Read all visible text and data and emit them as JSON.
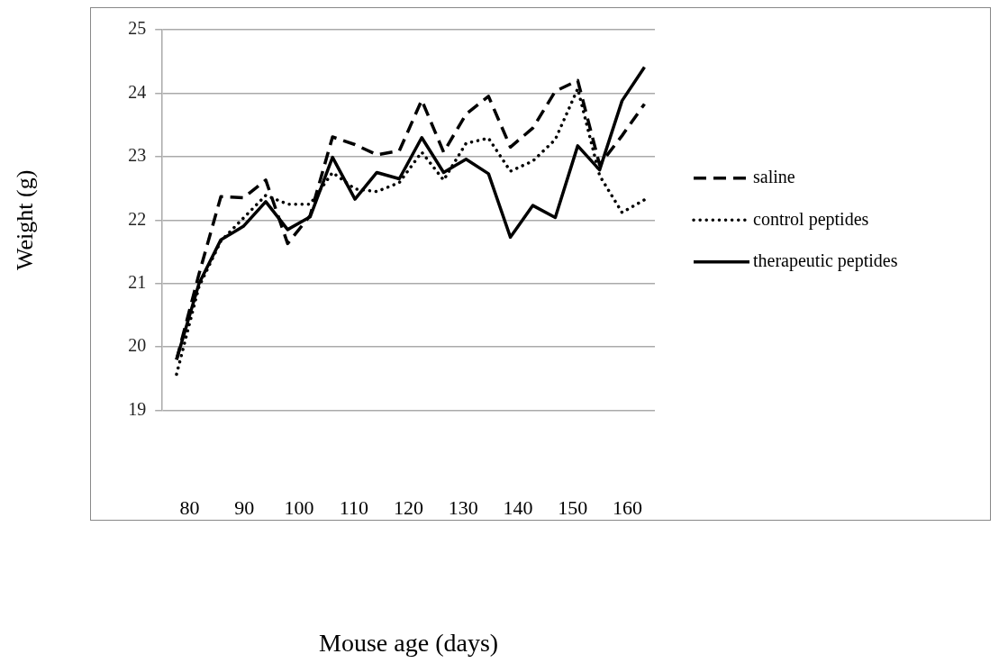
{
  "chart_data": {
    "type": "line",
    "xlabel": "Mouse age (days)",
    "ylabel": "Weight (g)",
    "x": [
      77.6,
      81.7,
      85.7,
      89.8,
      93.9,
      97.9,
      102.0,
      106.1,
      110.2,
      114.2,
      118.3,
      122.4,
      126.4,
      130.5,
      134.6,
      138.6,
      142.7,
      146.8,
      150.9,
      154.9,
      159.0,
      163.1
    ],
    "xlim": [
      75,
      165
    ],
    "xticks": [
      80,
      90,
      100,
      110,
      120,
      130,
      140,
      150,
      160
    ],
    "ylim": [
      19,
      25
    ],
    "yticks": [
      19,
      20,
      21,
      22,
      23,
      24,
      25
    ],
    "grid": "y",
    "legend": "right",
    "marker": "none",
    "series": [
      {
        "name": "saline",
        "color": "#000000",
        "line_style": "dashed",
        "values": [
          19.8,
          21.15,
          22.37,
          22.35,
          22.63,
          21.63,
          22.07,
          23.31,
          23.19,
          23.03,
          23.09,
          23.89,
          23.07,
          23.67,
          23.95,
          23.15,
          23.45,
          24.03,
          24.2,
          22.87,
          23.33,
          23.83
        ]
      },
      {
        "name": "control peptides",
        "color": "#000000",
        "line_style": "dotted",
        "values": [
          19.57,
          20.95,
          21.67,
          22.03,
          22.39,
          22.25,
          22.25,
          22.75,
          22.49,
          22.45,
          22.59,
          23.07,
          22.63,
          23.21,
          23.29,
          22.77,
          22.93,
          23.27,
          24.07,
          22.7,
          22.12,
          22.32
        ]
      },
      {
        "name": "therapeutic peptides",
        "color": "#000000",
        "line_style": "solid",
        "values": [
          19.8,
          21.0,
          21.69,
          21.9,
          22.29,
          21.85,
          22.05,
          22.99,
          22.33,
          22.75,
          22.65,
          23.3,
          22.75,
          22.96,
          22.73,
          21.73,
          22.23,
          22.04,
          23.17,
          22.79,
          23.88,
          24.41
        ]
      }
    ]
  }
}
